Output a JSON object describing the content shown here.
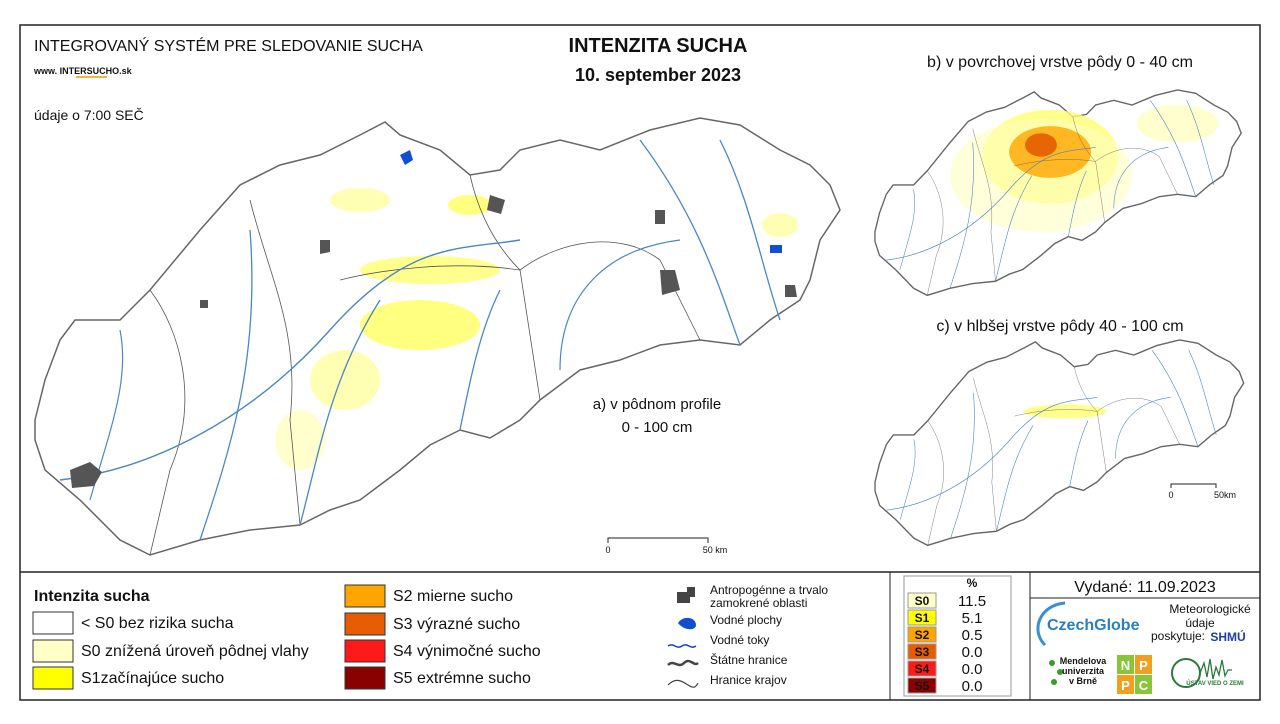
{
  "header": {
    "system_title": "INTEGROVANÝ SYSTÉM PRE SLEDOVANIE SUCHA",
    "website": "www. INTERSUCHO.sk",
    "time_note": "údaje o 7:00 SEČ",
    "title": "INTENZITA SUCHA",
    "date": "10. september 2023"
  },
  "maps": [
    {
      "label": [
        "a) v pôdnom profile",
        "0 - 100 cm"
      ],
      "scale": [
        "0",
        "50 km"
      ]
    },
    {
      "label": [
        "b) v povrchovej vrstve pôdy 0 - 40 cm"
      ],
      "scale": []
    },
    {
      "label": [
        "c) v hlbšej vrstve pôdy 40 - 100 cm"
      ],
      "scale": [
        "0",
        "50km"
      ]
    }
  ],
  "legend": {
    "title": "Intenzita sucha",
    "items": [
      {
        "label": "< S0 bez rizika sucha",
        "color": "#ffffff"
      },
      {
        "label": "S0 znížená úroveň pôdnej vlahy",
        "color": "#ffffc8"
      },
      {
        "label": "S1začínajúce sucho",
        "color": "#ffff00"
      },
      {
        "label": "S2 mierne sucho",
        "color": "#ffa500"
      },
      {
        "label": "S3 výrazné sucho",
        "color": "#e65c00"
      },
      {
        "label": "S4 výnimočné sucho",
        "color": "#ff1a1a"
      },
      {
        "label": "S5 extrémne sucho",
        "color": "#8b0000"
      }
    ]
  },
  "symbols": [
    {
      "label": [
        "Antropogénne a trvalo",
        "zamokrené oblasti"
      ]
    },
    {
      "label": [
        "Vodné plochy"
      ]
    },
    {
      "label": [
        "Vodné toky"
      ]
    },
    {
      "label": [
        "Štátne hranice"
      ]
    },
    {
      "label": [
        "Hranice krajov"
      ]
    }
  ],
  "stats": {
    "header": "%",
    "rows": [
      {
        "class": "S0",
        "percent": "11.5",
        "color": "#ffffc8"
      },
      {
        "class": "S1",
        "percent": "5.1",
        "color": "#ffff00"
      },
      {
        "class": "S2",
        "percent": "0.5",
        "color": "#ffa500"
      },
      {
        "class": "S3",
        "percent": "0.0",
        "color": "#e65c00"
      },
      {
        "class": "S4",
        "percent": "0.0",
        "color": "#ff1a1a"
      },
      {
        "class": "S5",
        "percent": "0.0",
        "color": "#8b0000"
      }
    ]
  },
  "footer": {
    "issued": "Vydané: 11.09.2023",
    "czechglobe": "CzechGlobe",
    "provider": [
      "Meteorologické",
      "údaje",
      "poskytuje:"
    ],
    "shmu": "SHMÚ",
    "mendel": [
      "Mendelova",
      "univerzita",
      "v Brně"
    ],
    "nppc": [
      "N",
      "P",
      "P",
      "C"
    ],
    "uvz": "ÚSTAV VIED O ZEMI"
  }
}
